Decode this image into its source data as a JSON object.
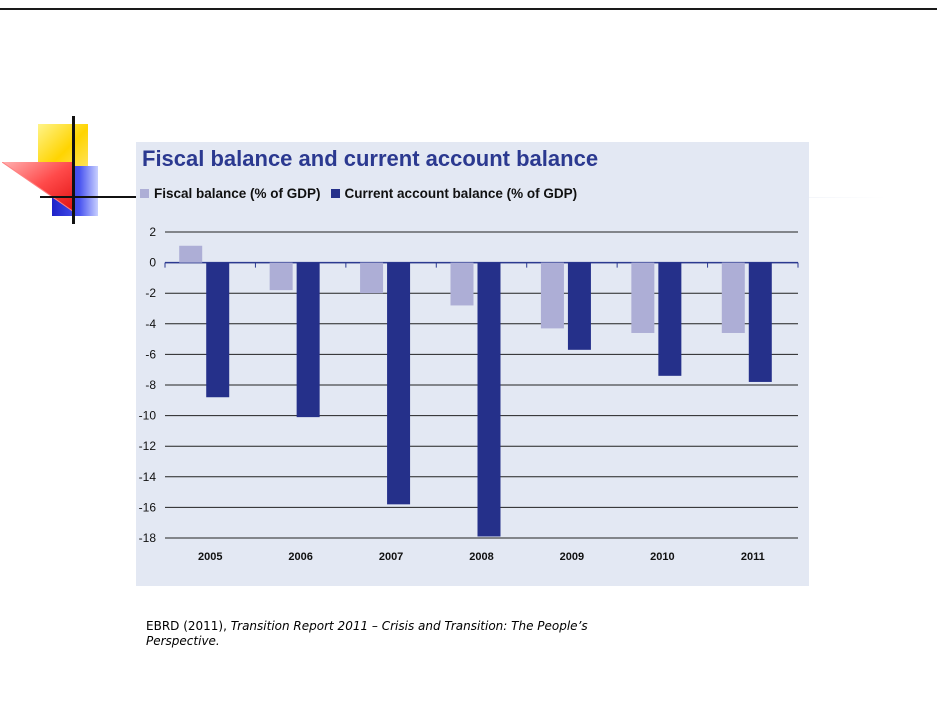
{
  "colors": {
    "fiscal": "#adaed6",
    "current": "#25308a",
    "title": "#2b3990",
    "panel": "#e3e8f3"
  },
  "logo": {
    "icon": "slide-logo-icon"
  },
  "chart_data": {
    "type": "bar",
    "title": "Fiscal balance and current account balance",
    "categories": [
      "2005",
      "2006",
      "2007",
      "2008",
      "2009",
      "2010",
      "2011"
    ],
    "series": [
      {
        "name": "Fiscal balance (% of GDP)",
        "values": [
          1.1,
          -1.8,
          -2.0,
          -2.8,
          -4.3,
          -4.6,
          -4.6
        ]
      },
      {
        "name": "Current account balance (% of GDP)",
        "values": [
          -8.8,
          -10.1,
          -15.8,
          -17.9,
          -5.7,
          -7.4,
          -7.8
        ]
      }
    ],
    "y_ticks": [
      "2",
      "0",
      "-2",
      "-4",
      "-6",
      "-8",
      "-10",
      "-12",
      "-14",
      "-16",
      "-18"
    ],
    "ylim": [
      -18,
      2
    ],
    "grid": true,
    "legend_position": "top-left"
  },
  "citation": {
    "prefix": "EBRD (2011), ",
    "title_line1": "Transition Report  2011 – Crisis and Transition: The People’s",
    "title_line2": "Perspective."
  }
}
